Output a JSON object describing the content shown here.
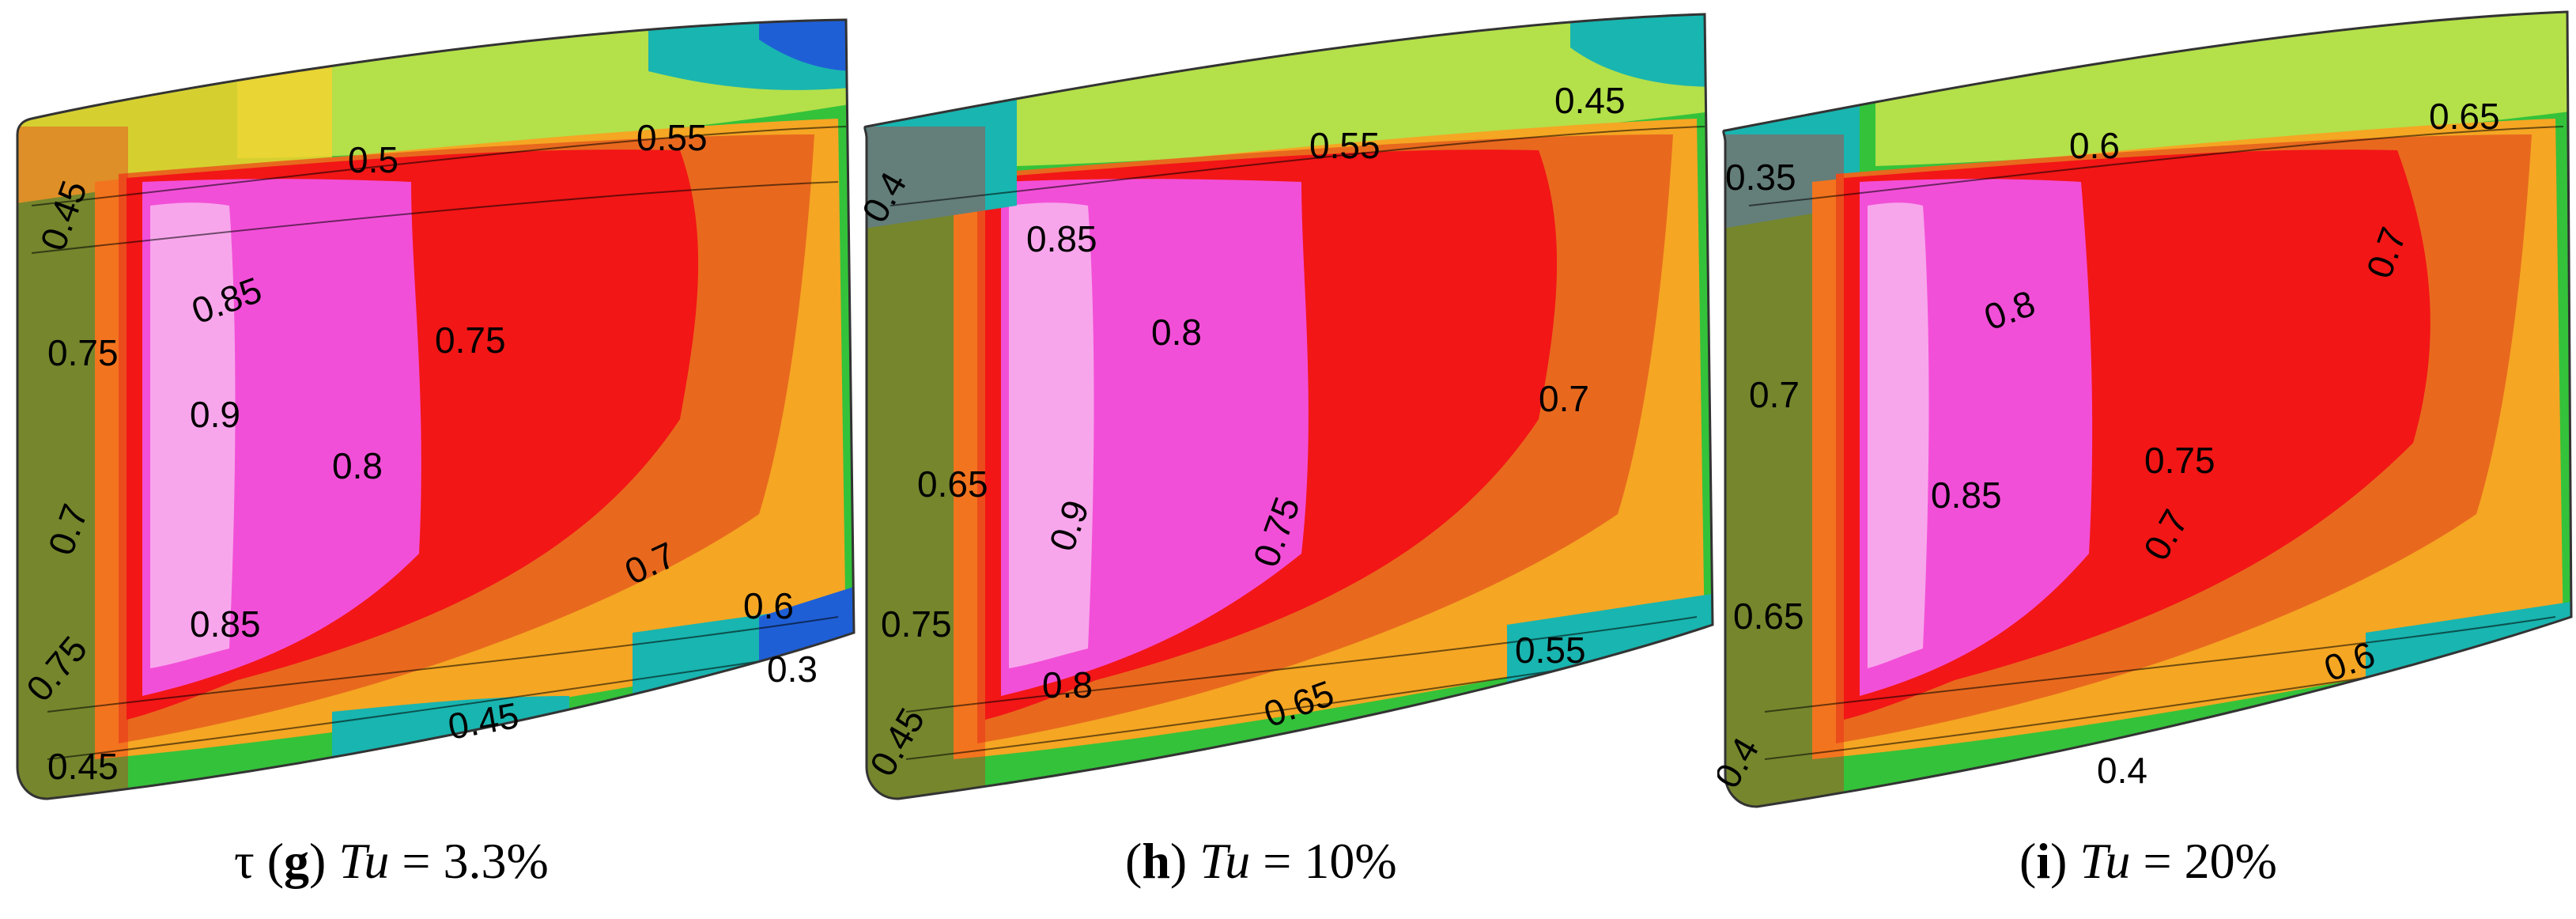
{
  "panels": [
    {
      "id": "g",
      "symbol": "τ",
      "letter": "g",
      "tu_label": "Tu",
      "tu_value": "= 3.3%",
      "contour_labels": [
        "0.45",
        "0.5",
        "0.55",
        "0.75",
        "0.85",
        "0.75",
        "0.9",
        "0.8",
        "0.7",
        "0.7",
        "0.85",
        "0.6",
        "0.3",
        "0.75",
        "0.45",
        "0.45"
      ]
    },
    {
      "id": "h",
      "symbol": "",
      "letter": "h",
      "tu_label": "Tu",
      "tu_value": "= 10%",
      "contour_labels": [
        "0.4",
        "0.55",
        "0.45",
        "0.85",
        "0.8",
        "0.7",
        "0.65",
        "0.9",
        "0.75",
        "0.75",
        "0.8",
        "0.65",
        "0.55",
        "0.45"
      ]
    },
    {
      "id": "i",
      "symbol": "",
      "letter": "i",
      "tu_label": "Tu",
      "tu_value": "= 20%",
      "contour_labels": [
        "0.35",
        "0.6",
        "0.65",
        "0.7",
        "0.8",
        "0.7",
        "0.75",
        "0.85",
        "0.7",
        "0.65",
        "0.6",
        "0.4",
        "0.4"
      ]
    }
  ],
  "colors": {
    "blue": "#1f5fd6",
    "cyan": "#19b5b0",
    "green": "#34c23a",
    "lime": "#b4e04a",
    "yellow": "#f2d22f",
    "orange": "#f5a623",
    "dark_orange": "#e8691e",
    "red": "#f21616",
    "magenta": "#f24fd8",
    "pink": "#f8a6ec"
  }
}
